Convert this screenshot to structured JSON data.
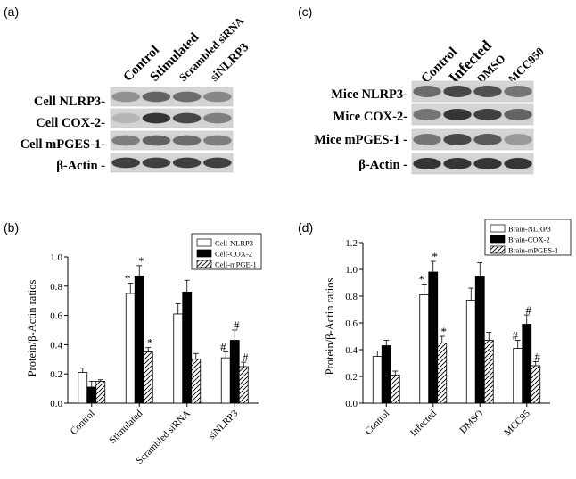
{
  "panels": {
    "a": "(a)",
    "b": "(b)",
    "c": "(c)",
    "d": "(d)"
  },
  "blots": [
    {
      "columns": [
        "Control",
        "Stimulated",
        "Scrambled siRNA",
        "siNLRP3"
      ],
      "rows": [
        "Cell NLRP3-",
        "Cell COX-2-",
        "Cell mPGES-1-",
        "β-Actin -"
      ]
    },
    {
      "columns": [
        "Control",
        "Infected",
        "DMSO",
        "MCC950"
      ],
      "rows": [
        "Mice NLRP3-",
        "Mice COX-2-",
        "Mice mPGES-1 -",
        "β-Actin -"
      ]
    }
  ],
  "chart_data": [
    {
      "type": "bar",
      "categories": [
        "Control",
        "Stimulated",
        "Scrambled siRNA",
        "siNLRP3"
      ],
      "series": [
        {
          "name": "Cell-NLRP3",
          "values": [
            0.21,
            0.75,
            0.61,
            0.31
          ],
          "errors": [
            0.03,
            0.07,
            0.07,
            0.04
          ],
          "marks": [
            "",
            "*",
            "",
            "#"
          ]
        },
        {
          "name": "Cell-COX-2",
          "values": [
            0.11,
            0.87,
            0.76,
            0.43
          ],
          "errors": [
            0.04,
            0.07,
            0.08,
            0.07
          ],
          "marks": [
            "",
            "*",
            "",
            "#"
          ]
        },
        {
          "name": "Cell-mPGE-1",
          "values": [
            0.15,
            0.35,
            0.3,
            0.25
          ],
          "errors": [
            0.01,
            0.03,
            0.04,
            0.03
          ],
          "marks": [
            "",
            "*",
            "",
            "#"
          ]
        }
      ],
      "xlabel": "",
      "ylabel": "Protein/β-Actin ratios",
      "ylim": [
        0,
        1.0
      ],
      "yticks": [
        "0.0",
        "0.2",
        "0.4",
        "0.6",
        "0.8",
        "1.0"
      ],
      "legend": "top-right",
      "grid": false
    },
    {
      "type": "bar",
      "categories": [
        "Control",
        "Infected",
        "DMSO",
        "MCC95"
      ],
      "series": [
        {
          "name": "Brain-NLRP3",
          "values": [
            0.35,
            0.81,
            0.77,
            0.41
          ],
          "errors": [
            0.04,
            0.08,
            0.09,
            0.06
          ],
          "marks": [
            "",
            "*",
            "",
            "#"
          ]
        },
        {
          "name": "Brain-COX-2",
          "values": [
            0.43,
            0.98,
            0.95,
            0.59
          ],
          "errors": [
            0.04,
            0.08,
            0.1,
            0.07
          ],
          "marks": [
            "",
            "*",
            "",
            "#"
          ]
        },
        {
          "name": "Brain-mPGES-1",
          "values": [
            0.21,
            0.45,
            0.47,
            0.28
          ],
          "errors": [
            0.03,
            0.05,
            0.06,
            0.03
          ],
          "marks": [
            "",
            "*",
            "",
            "#"
          ]
        }
      ],
      "xlabel": "",
      "ylabel": "Protein/β-Actin ratios",
      "ylim": [
        0,
        1.2
      ],
      "yticks": [
        "0.0",
        "0.2",
        "0.4",
        "0.6",
        "0.8",
        "1.0",
        "1.2"
      ],
      "legend": "top-right",
      "grid": false
    }
  ]
}
